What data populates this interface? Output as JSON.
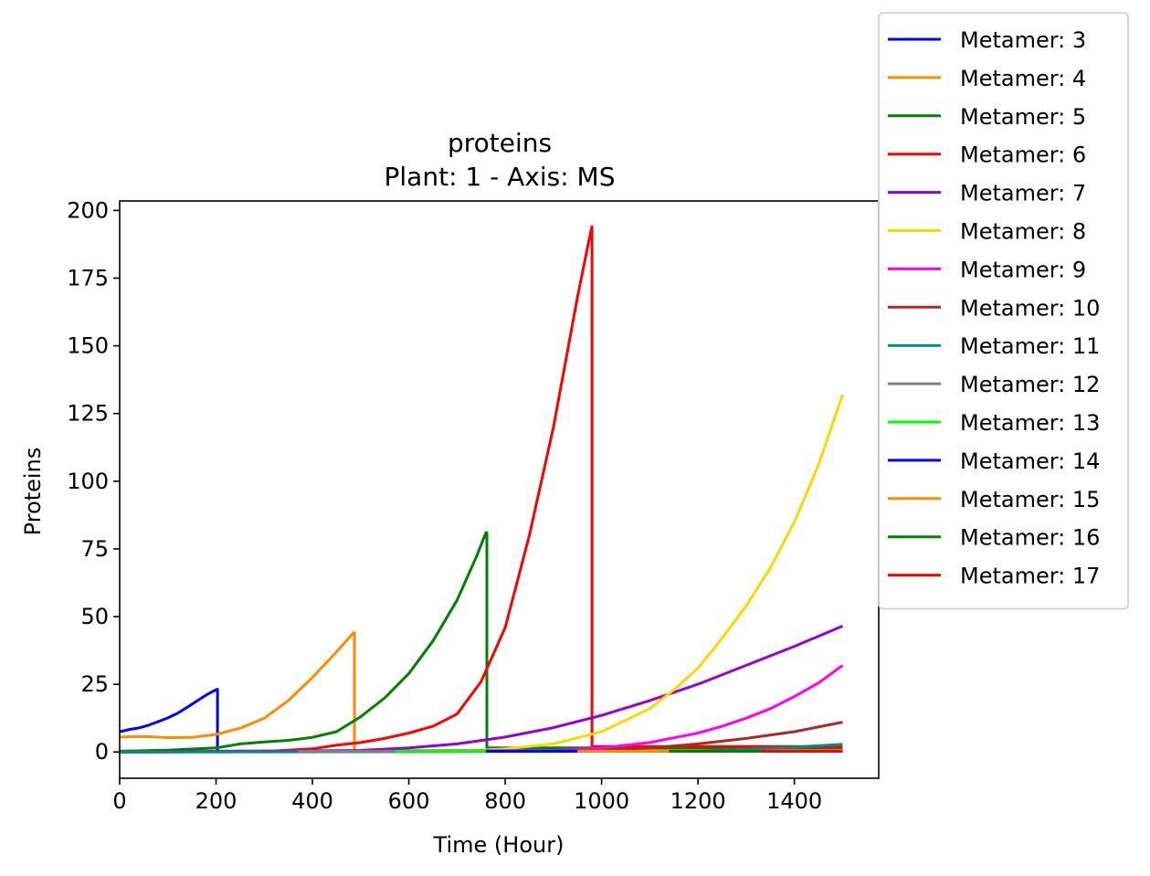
{
  "chart_data": {
    "type": "line",
    "title": "proteins",
    "subtitle": "Plant: 1 - Axis: MS",
    "xlabel": "Time (Hour)",
    "ylabel": "Proteins",
    "xlim": [
      0,
      1575
    ],
    "ylim": [
      -9.7,
      203.5
    ],
    "xticks": [
      0,
      200,
      400,
      600,
      800,
      1000,
      1200,
      1400
    ],
    "yticks": [
      0,
      25,
      50,
      75,
      100,
      125,
      150,
      175,
      200
    ],
    "grid": false,
    "legend_position": "outside top-right",
    "series": [
      {
        "name": "Metamer: 3",
        "color": "#0000ff",
        "x": [
          0,
          20,
          40,
          60,
          80,
          100,
          120,
          140,
          160,
          180,
          200,
          203,
          203,
          1500
        ],
        "y": [
          7.5,
          8.3,
          8.9,
          9.9,
          11.2,
          12.6,
          14.3,
          16.5,
          18.8,
          21.1,
          23.0,
          23.2,
          0.3,
          0.3
        ]
      },
      {
        "name": "Metamer: 4",
        "color": "#ff8c00",
        "x": [
          0,
          50,
          100,
          150,
          200,
          250,
          300,
          350,
          400,
          450,
          485,
          487,
          487,
          1500
        ],
        "y": [
          5.5,
          5.7,
          5.3,
          5.4,
          6.5,
          8.8,
          12.5,
          19.0,
          27.5,
          37.0,
          44.0,
          44.0,
          0.5,
          0.5
        ]
      },
      {
        "name": "Metamer: 5",
        "color": "#008000",
        "x": [
          0,
          100,
          200,
          250,
          300,
          350,
          400,
          450,
          500,
          550,
          600,
          650,
          700,
          740,
          760,
          762,
          762,
          1500
        ],
        "y": [
          0.3,
          0.7,
          1.5,
          3.0,
          3.7,
          4.3,
          5.4,
          7.5,
          13.0,
          20.0,
          29.0,
          41.0,
          56.0,
          72.0,
          81.0,
          81.0,
          1.5,
          1.5
        ]
      },
      {
        "name": "Metamer: 6",
        "color": "#ff0000",
        "x": [
          0,
          300,
          400,
          450,
          500,
          550,
          600,
          650,
          700,
          750,
          800,
          850,
          900,
          950,
          975,
          980,
          980,
          1500
        ],
        "y": [
          0,
          0.2,
          1.2,
          2.5,
          3.5,
          5.0,
          7.0,
          9.5,
          14.0,
          26.0,
          46.0,
          80.0,
          120.0,
          168.0,
          190.0,
          194.0,
          2.0,
          2.0
        ]
      },
      {
        "name": "Metamer: 7",
        "color": "#9400d3",
        "x": [
          0,
          500,
          600,
          700,
          800,
          900,
          1000,
          1100,
          1200,
          1300,
          1400,
          1500
        ],
        "y": [
          0,
          0.6,
          1.5,
          3.0,
          5.5,
          9.0,
          13.5,
          19.0,
          25.0,
          32.0,
          39.0,
          46.5
        ]
      },
      {
        "name": "Metamer: 8",
        "color": "#ffd700",
        "x": [
          0,
          700,
          800,
          900,
          1000,
          1100,
          1150,
          1200,
          1250,
          1300,
          1350,
          1400,
          1450,
          1500
        ],
        "y": [
          0,
          0.2,
          1.2,
          3.0,
          7.5,
          16.0,
          23.0,
          31.0,
          42.0,
          54.0,
          68.0,
          85.0,
          106.0,
          132.0
        ]
      },
      {
        "name": "Metamer: 9",
        "color": "#ff00ff",
        "x": [
          0,
          900,
          1000,
          1100,
          1200,
          1250,
          1300,
          1350,
          1400,
          1450,
          1500
        ],
        "y": [
          0,
          0.5,
          1.5,
          3.5,
          7.0,
          9.5,
          12.5,
          16.0,
          20.5,
          25.5,
          32.0
        ]
      },
      {
        "name": "Metamer: 10",
        "color": "#a52a2a",
        "x": [
          0,
          1000,
          1100,
          1200,
          1300,
          1400,
          1500
        ],
        "y": [
          0,
          0.5,
          1.5,
          3.0,
          5.0,
          7.5,
          11.0
        ]
      },
      {
        "name": "Metamer: 11",
        "color": "#008b8b",
        "x": [
          0,
          200,
          1200,
          1300,
          1400,
          1500
        ],
        "y": [
          0,
          0,
          0.3,
          1.0,
          1.8,
          2.8
        ]
      },
      {
        "name": "Metamer: 12",
        "color": "#808080",
        "x": [
          370,
          570
        ],
        "y": [
          0.3,
          0.3
        ]
      },
      {
        "name": "Metamer: 13",
        "color": "#00ff00",
        "x": [
          570,
          760
        ],
        "y": [
          0.3,
          0.3
        ]
      },
      {
        "name": "Metamer: 14",
        "color": "#0000ff",
        "x": [
          760,
          950
        ],
        "y": [
          0.3,
          0.3
        ]
      },
      {
        "name": "Metamer: 15",
        "color": "#ff8c00",
        "x": [
          950,
          1140
        ],
        "y": [
          0.3,
          0.3
        ]
      },
      {
        "name": "Metamer: 16",
        "color": "#008000",
        "x": [
          1140,
          1330
        ],
        "y": [
          0.3,
          0.3
        ]
      },
      {
        "name": "Metamer: 17",
        "color": "#ff0000",
        "x": [
          1330,
          1500
        ],
        "y": [
          0.3,
          0.3
        ]
      }
    ]
  }
}
